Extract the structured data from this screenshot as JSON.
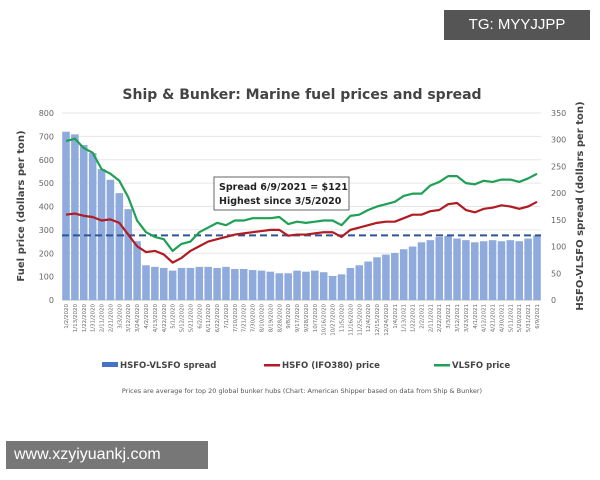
{
  "watermarks": {
    "top": "TG: MYYJJPP",
    "bottom": "www.xzyiyuankj.com"
  },
  "chart_data": {
    "type": "bar+line",
    "title": "Ship & Bunker: Marine fuel prices and spread",
    "ylabel": "Fuel price  (dollars per ton)",
    "y2label": "HSFO-VLSFO spread  (dollars per ton)",
    "ylim": [
      0,
      800
    ],
    "yticks": [
      0,
      100,
      200,
      300,
      400,
      500,
      600,
      700,
      800
    ],
    "y2lim": [
      0,
      350
    ],
    "y2ticks": [
      0,
      50,
      100,
      150,
      200,
      250,
      300,
      350
    ],
    "grid": true,
    "x": [
      "1/2/2020",
      "1/13/2020",
      "1/22/2020",
      "1/31/2020",
      "2/11/2020",
      "2/21/2020",
      "3/3/2020",
      "3/12/2020",
      "3/24/2020",
      "4/2/2020",
      "4/13/2020",
      "4/22/2020",
      "5/1/2020",
      "5/12/2020",
      "5/21/2020",
      "6/2/2020",
      "6/11/2020",
      "6/22/2020",
      "7/1/2020",
      "7/10/2020",
      "7/21/2020",
      "7/30/2020",
      "8/10/2020",
      "8/19/2020",
      "8/28/2020",
      "9/8/2020",
      "9/17/2020",
      "9/28/2020",
      "10/7/2020",
      "10/16/2020",
      "10/27/2020",
      "11/5/2020",
      "11/16/2020",
      "11/25/2020",
      "12/4/2020",
      "12/15/2020",
      "12/24/2020",
      "1/4/2021",
      "1/13/2021",
      "1/22/2021",
      "2/2/2021",
      "2/11/2021",
      "2/22/2021",
      "3/3/2021",
      "3/12/2021",
      "3/23/2021",
      "4/1/2021",
      "4/12/2021",
      "4/21/2021",
      "4/30/2021",
      "5/11/2021",
      "5/20/2021",
      "5/31/2021",
      "6/9/2021"
    ],
    "series": [
      {
        "name": "HSFO-VLSFO spread",
        "type": "bar",
        "axis": "right",
        "color": "#8faadc",
        "values": [
          315,
          310,
          290,
          275,
          245,
          225,
          200,
          170,
          110,
          65,
          62,
          60,
          55,
          60,
          60,
          62,
          62,
          60,
          62,
          58,
          58,
          56,
          55,
          53,
          50,
          50,
          55,
          53,
          55,
          52,
          45,
          48,
          60,
          65,
          72,
          80,
          85,
          88,
          95,
          100,
          108,
          112,
          118,
          120,
          115,
          112,
          108,
          110,
          112,
          110,
          112,
          110,
          115,
          121
        ]
      },
      {
        "name": "HSFO (IFO380) price",
        "type": "line",
        "axis": "left",
        "color": "#b01c22",
        "values": [
          365,
          370,
          360,
          355,
          340,
          345,
          330,
          280,
          230,
          205,
          210,
          195,
          160,
          180,
          210,
          230,
          250,
          260,
          270,
          280,
          285,
          290,
          295,
          300,
          300,
          275,
          280,
          280,
          285,
          290,
          290,
          270,
          300,
          310,
          320,
          330,
          335,
          335,
          350,
          365,
          365,
          380,
          385,
          410,
          415,
          385,
          375,
          390,
          395,
          405,
          400,
          390,
          400,
          420
        ]
      },
      {
        "name": "VLSFO price",
        "type": "line",
        "axis": "left",
        "color": "#1fa055",
        "values": [
          680,
          690,
          650,
          630,
          560,
          540,
          510,
          440,
          340,
          290,
          270,
          260,
          210,
          240,
          250,
          290,
          310,
          330,
          320,
          340,
          340,
          350,
          350,
          350,
          355,
          325,
          335,
          330,
          335,
          340,
          340,
          320,
          360,
          365,
          385,
          400,
          410,
          420,
          445,
          455,
          455,
          490,
          505,
          530,
          530,
          500,
          495,
          510,
          505,
          515,
          515,
          505,
          520,
          540
        ]
      }
    ],
    "reference_line": {
      "axis": "right",
      "value": 121,
      "style": "dashed",
      "color": "#2f5597"
    },
    "annotation": [
      "Spread 6/9/2021 = $121",
      "Highest since 3/5/2020"
    ],
    "legend_position": "bottom",
    "footnote": "Prices are average for top 20 global bunker hubs (Chart: American Shipper based on data from Ship & Bunker)"
  }
}
